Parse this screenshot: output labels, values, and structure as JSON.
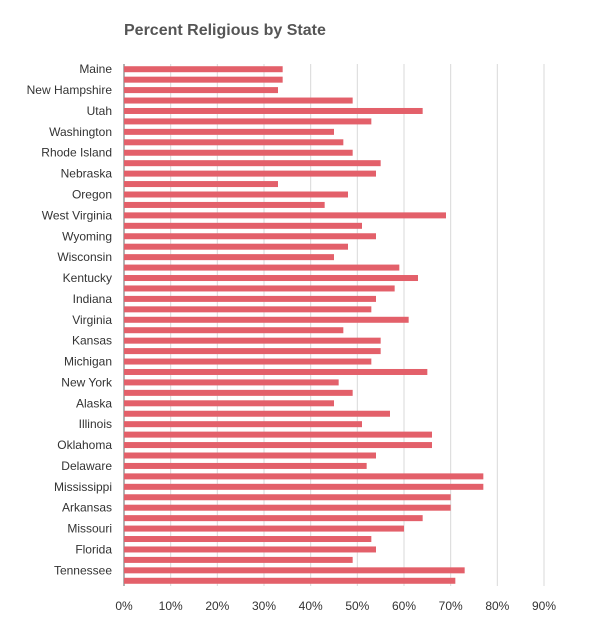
{
  "chart_data": {
    "type": "bar",
    "orientation": "horizontal",
    "title": "Percent Religious by State",
    "xlabel": "",
    "ylabel": "",
    "xlim": [
      0,
      90
    ],
    "x_ticks": [
      "0%",
      "10%",
      "20%",
      "30%",
      "40%",
      "50%",
      "60%",
      "70%",
      "80%",
      "90%"
    ],
    "grid": true,
    "legend": "none",
    "bar_color": "#e3606a",
    "categories": [
      "Maine",
      "",
      "New Hampshire",
      "",
      "Utah",
      "",
      "Washington",
      "",
      "Rhode Island",
      "",
      "Nebraska",
      "",
      "Oregon",
      "",
      "West Virginia",
      "",
      "Wyoming",
      "",
      "Wisconsin",
      "",
      "Kentucky",
      "",
      "Indiana",
      "",
      "Virginia",
      "",
      "Kansas",
      "",
      "Michigan",
      "",
      "New York",
      "",
      "Alaska",
      "",
      "Illinois",
      "",
      "Oklahoma",
      "",
      "Delaware",
      "",
      "Mississippi",
      "",
      "Arkansas",
      "",
      "Missouri",
      "",
      "Florida",
      "",
      "Tennessee",
      ""
    ],
    "values": [
      34,
      34,
      33,
      49,
      64,
      53,
      45,
      47,
      49,
      55,
      54,
      33,
      48,
      43,
      69,
      51,
      54,
      48,
      45,
      59,
      63,
      58,
      54,
      53,
      61,
      47,
      55,
      55,
      53,
      65,
      46,
      49,
      45,
      57,
      51,
      66,
      66,
      54,
      52,
      77,
      77,
      70,
      70,
      64,
      60,
      53,
      54,
      49,
      73,
      71
    ]
  }
}
